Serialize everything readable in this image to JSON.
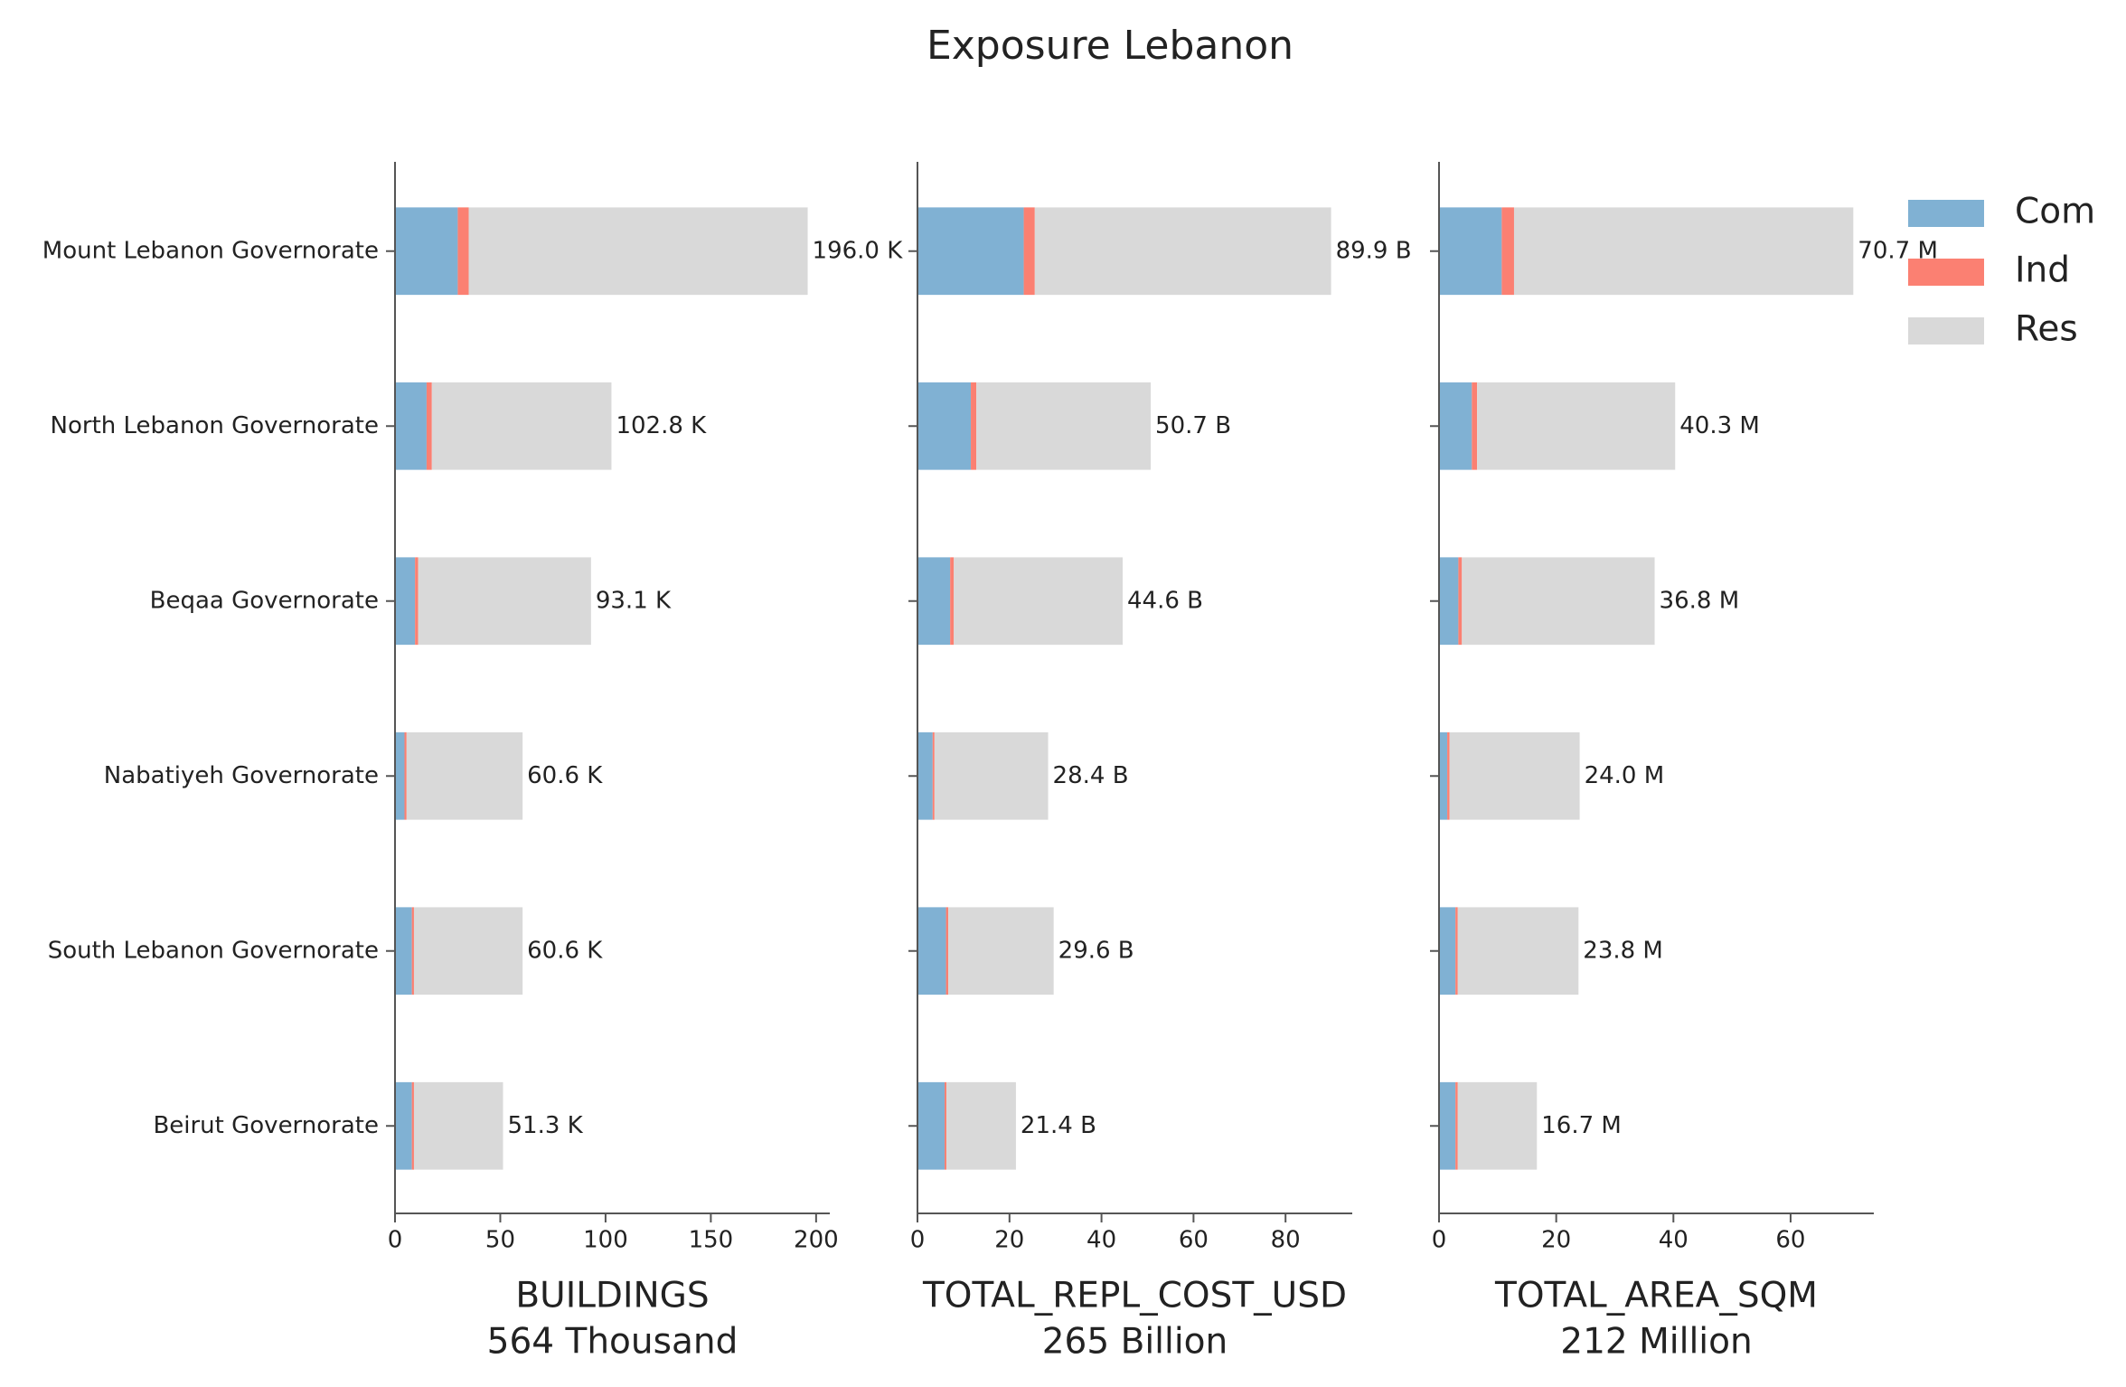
{
  "title": "Exposure Lebanon",
  "legend": {
    "position": "upper right"
  },
  "chart_data": [
    {
      "type": "barh",
      "xlabel": "BUILDINGS",
      "xlabel2": "564 Thousand",
      "categories": [
        "Mount Lebanon Governorate",
        "North Lebanon Governorate",
        "Beqaa Governorate",
        "Nabatiyeh Governorate",
        "South Lebanon Governorate",
        "Beirut Governorate"
      ],
      "series": [
        {
          "values": [
            29.8,
            15,
            9.5,
            4.5,
            8,
            8
          ]
        },
        {
          "values": [
            5.2,
            2.5,
            1.5,
            1,
            1,
            1
          ]
        },
        {
          "values": [
            161,
            85.3,
            82.1,
            55.1,
            51.6,
            42.3
          ]
        }
      ],
      "totals": [
        196.0,
        102.8,
        93.1,
        60.6,
        60.6,
        51.3
      ],
      "total_labels": [
        "196.0 K",
        "102.8 K",
        "93.1 K",
        "60.6 K",
        "60.6 K",
        "51.3 K"
      ],
      "xlim": [
        0,
        206.5
      ],
      "xticks": [
        0,
        50,
        100,
        150,
        200
      ]
    },
    {
      "type": "barh",
      "xlabel": "TOTAL_REPL_COST_USD",
      "xlabel2": "265 Billion",
      "series": [
        {
          "values": [
            23.1,
            11.6,
            7.1,
            3.3,
            6.2,
            5.9
          ]
        },
        {
          "values": [
            2.4,
            1.2,
            0.8,
            0.4,
            0.5,
            0.4
          ]
        },
        {
          "values": [
            64.4,
            37.9,
            36.7,
            24.7,
            22.9,
            15.1
          ]
        }
      ],
      "totals": [
        89.9,
        50.7,
        44.6,
        28.4,
        29.6,
        21.4
      ],
      "total_labels": [
        "89.9 B",
        "50.7 B",
        "44.6 B",
        "28.4 B",
        "29.6 B",
        "21.4 B"
      ],
      "xlim": [
        0,
        94.5
      ],
      "xticks": [
        0,
        20,
        40,
        60,
        80
      ]
    },
    {
      "type": "barh",
      "xlabel": "TOTAL_AREA_SQM",
      "xlabel2": "212 Million",
      "series": [
        {
          "name": "Com",
          "color": "#80b1d3",
          "values": [
            10.7,
            5.6,
            3.3,
            1.4,
            2.8,
            2.8
          ]
        },
        {
          "name": "Ind",
          "color": "#fb8072",
          "values": [
            2.1,
            0.9,
            0.6,
            0.4,
            0.4,
            0.4
          ]
        },
        {
          "name": "Res",
          "color": "#d9d9d9",
          "values": [
            57.9,
            33.8,
            32.9,
            22.2,
            20.6,
            13.5
          ]
        }
      ],
      "totals": [
        70.7,
        40.3,
        36.8,
        24.0,
        23.8,
        16.7
      ],
      "total_labels": [
        "70.7 M",
        "40.3 M",
        "36.8 M",
        "24.0 M",
        "23.8 M",
        "16.7 M"
      ],
      "xlim": [
        0,
        74.2
      ],
      "xticks": [
        0,
        20,
        40,
        60
      ]
    }
  ]
}
